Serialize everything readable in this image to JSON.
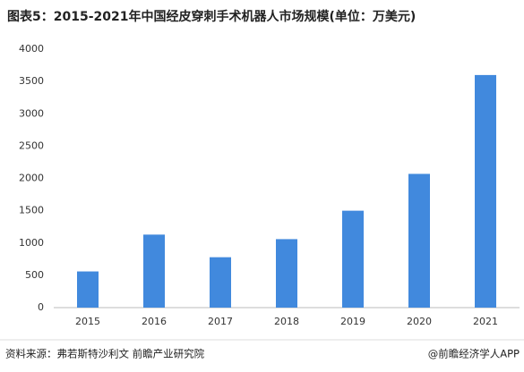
{
  "chart_data": {
    "type": "bar",
    "title": "图表5：2015-2021年中国经皮穿刺手术机器人市场规模(单位：万美元)",
    "categories": [
      "2015",
      "2016",
      "2017",
      "2018",
      "2019",
      "2020",
      "2021"
    ],
    "values": [
      560,
      1130,
      780,
      1060,
      1500,
      2070,
      3600
    ],
    "color": "#4189dd",
    "ylim": [
      0,
      4000
    ],
    "yticks": [
      0,
      500,
      1000,
      1500,
      2000,
      2500,
      3000,
      3500,
      4000
    ],
    "grid": false,
    "source": "资料来源：弗若斯特沙利文 前瞻产业研究院",
    "credit": "@前瞻经济学人APP"
  }
}
